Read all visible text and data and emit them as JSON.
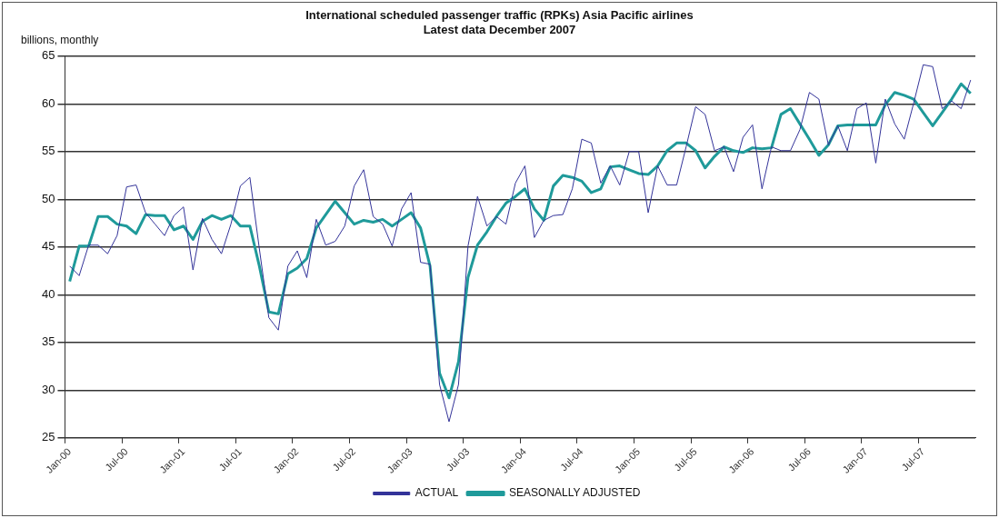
{
  "chart_data": {
    "type": "line",
    "title": "International scheduled passenger traffic (RPKs) Asia Pacific airlines",
    "subtitle": "Latest data December 2007",
    "ylabel": "billions, monthly",
    "categories": [
      "Jan-00",
      null,
      null,
      null,
      null,
      null,
      "Jul-00",
      null,
      null,
      null,
      null,
      null,
      "Jan-01",
      null,
      null,
      null,
      null,
      null,
      "Jul-01",
      null,
      null,
      null,
      null,
      null,
      "Jan-02",
      null,
      null,
      null,
      null,
      null,
      "Jul-02",
      null,
      null,
      null,
      null,
      null,
      "Jan-03",
      null,
      null,
      null,
      null,
      null,
      "Jul-03",
      null,
      null,
      null,
      null,
      null,
      "Jan-04",
      null,
      null,
      null,
      null,
      null,
      "Jul-04",
      null,
      null,
      null,
      null,
      null,
      "Jan-05",
      null,
      null,
      null,
      null,
      null,
      "Jul-05",
      null,
      null,
      null,
      null,
      null,
      "Jan-06",
      null,
      null,
      null,
      null,
      null,
      "Jul-06",
      null,
      null,
      null,
      null,
      null,
      "Jan-07",
      null,
      null,
      null,
      null,
      null,
      "Jul-07",
      null,
      null,
      null,
      null,
      null
    ],
    "series": [
      {
        "name": "ACTUAL",
        "color": "#333399",
        "values": [
          43.0,
          42.0,
          45.2,
          45.2,
          44.3,
          46.2,
          51.3,
          51.5,
          48.6,
          47.4,
          46.2,
          48.3,
          49.2,
          42.6,
          48.0,
          45.8,
          44.3,
          47.4,
          51.4,
          52.3,
          44.8,
          37.6,
          36.3,
          43.0,
          44.6,
          41.8,
          47.9,
          45.2,
          45.6,
          47.2,
          51.4,
          53.1,
          48.2,
          47.4,
          45.1,
          49.0,
          50.7,
          43.4,
          43.2,
          30.6,
          26.7,
          30.6,
          45.1,
          50.3,
          47.2,
          48.2,
          47.4,
          51.7,
          53.5,
          46.0,
          47.8,
          48.3,
          48.4,
          51.1,
          56.3,
          55.9,
          51.7,
          53.5,
          51.5,
          55.0,
          55.0,
          48.6,
          53.5,
          51.5,
          51.5,
          55.5,
          59.7,
          58.9,
          55.1,
          55.5,
          52.9,
          56.5,
          57.8,
          51.1,
          55.5,
          55.1,
          55.1,
          57.3,
          61.2,
          60.5,
          55.7,
          57.7,
          55.1,
          59.5,
          60.1,
          53.8,
          60.5,
          57.9,
          56.3,
          60.1,
          64.1,
          63.9,
          59.5,
          60.3,
          59.5,
          62.5
        ]
      },
      {
        "name": "SEASONALLY ADJUSTED",
        "color": "#1f9a9a",
        "values": [
          41.4,
          45.1,
          45.1,
          48.2,
          48.2,
          47.4,
          47.2,
          46.4,
          48.4,
          48.3,
          48.3,
          46.8,
          47.2,
          45.8,
          47.7,
          48.3,
          47.9,
          48.3,
          47.2,
          47.2,
          43.0,
          38.2,
          38.0,
          42.2,
          42.8,
          43.8,
          47.0,
          48.4,
          49.8,
          48.6,
          47.4,
          47.8,
          47.6,
          47.9,
          47.2,
          47.9,
          48.6,
          47.0,
          43.0,
          31.8,
          29.2,
          33.0,
          41.8,
          45.2,
          46.6,
          48.2,
          49.6,
          50.3,
          51.1,
          49.0,
          47.8,
          51.4,
          52.5,
          52.3,
          51.9,
          50.7,
          51.1,
          53.4,
          53.5,
          53.1,
          52.7,
          52.6,
          53.5,
          55.1,
          55.9,
          55.9,
          55.1,
          53.3,
          54.5,
          55.5,
          55.1,
          54.9,
          55.4,
          55.3,
          55.4,
          58.9,
          59.5,
          57.9,
          56.3,
          54.6,
          55.7,
          57.7,
          57.8,
          57.8,
          57.8,
          57.8,
          59.9,
          61.2,
          60.9,
          60.5,
          59.1,
          57.7,
          59.1,
          60.5,
          62.1,
          61.1
        ]
      }
    ],
    "ylim": [
      25,
      65
    ],
    "yticks": [
      25,
      30,
      35,
      40,
      45,
      50,
      55,
      60,
      65
    ],
    "grid": "y",
    "legend": "bottom",
    "marker": "none",
    "line_style": "solid"
  }
}
